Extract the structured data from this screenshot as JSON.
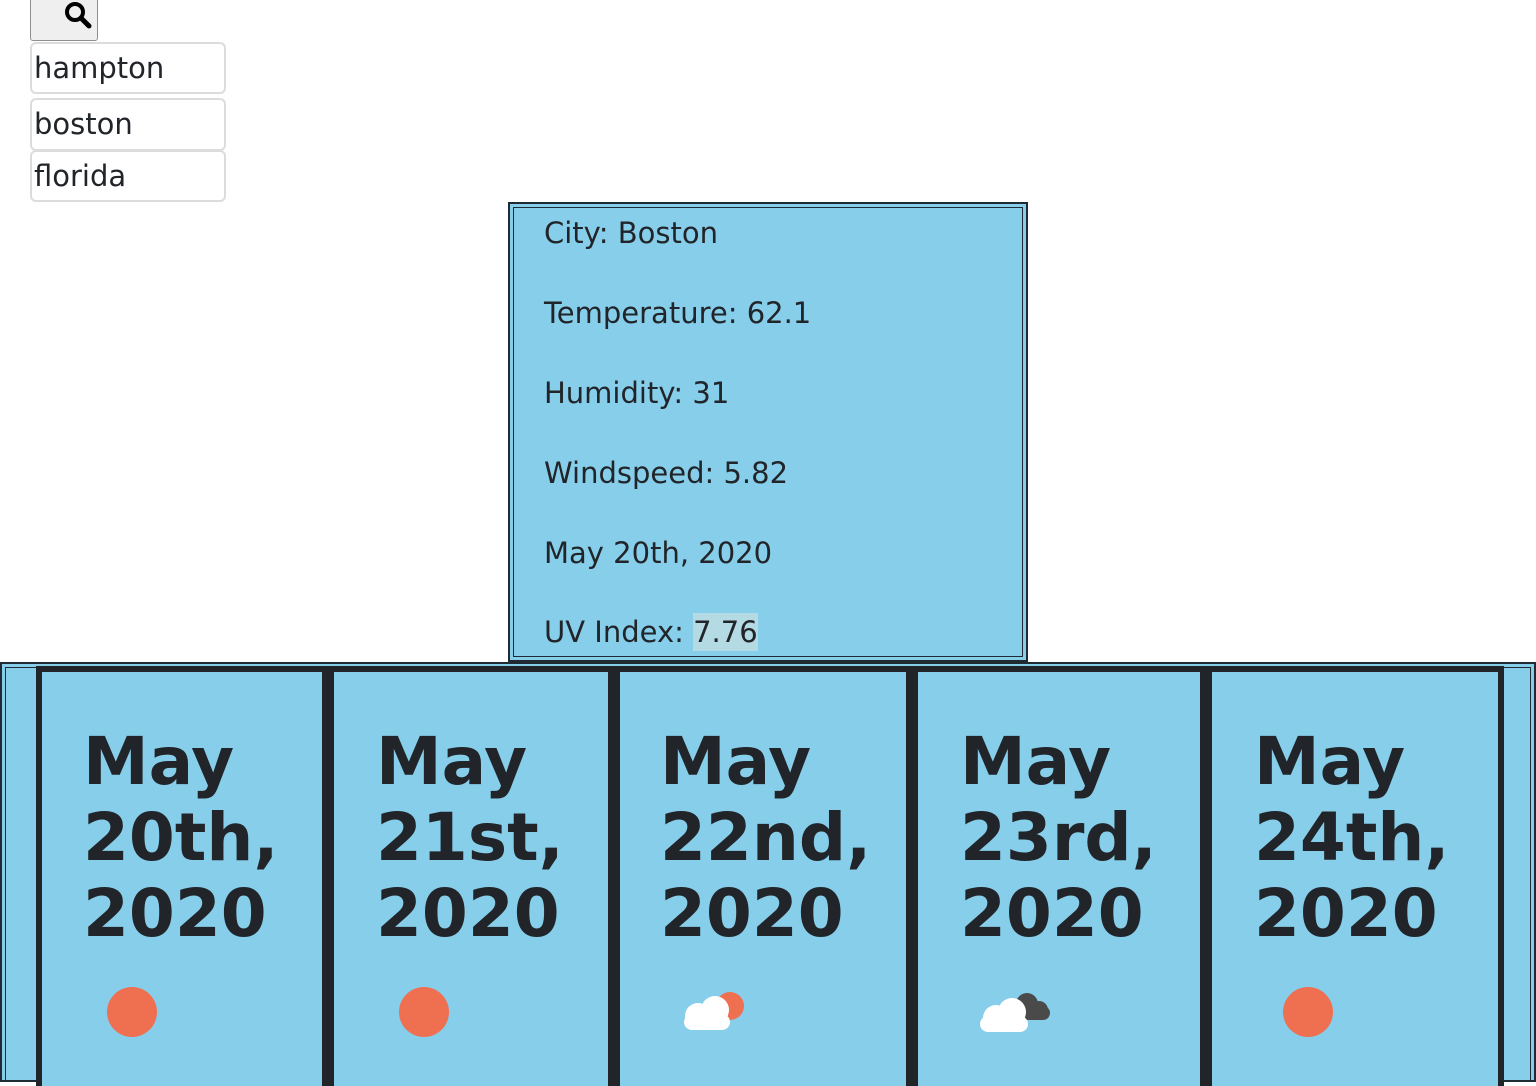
{
  "search": {
    "icon": "search-icon"
  },
  "history": [
    "hampton",
    "boston",
    "florida"
  ],
  "current": {
    "city_label": "City: Boston",
    "temperature_label": "Temperature: 62.1",
    "humidity_label": "Humidity: 31",
    "windspeed_label": "Windspeed: 5.82",
    "date": "May 20th, 2020",
    "uv_label": "UV Index: ",
    "uv_value": "7.76"
  },
  "forecast": [
    {
      "line1": "May",
      "line2": "20th,",
      "line3": "2020",
      "icon": "sun-icon"
    },
    {
      "line1": "May",
      "line2": "21st,",
      "line3": "2020",
      "icon": "sun-icon"
    },
    {
      "line1": "May",
      "line2": "22nd,",
      "line3": "2020",
      "icon": "partly-cloudy-icon"
    },
    {
      "line1": "May",
      "line2": "23rd,",
      "line3": "2020",
      "icon": "cloudy-icon"
    },
    {
      "line1": "May",
      "line2": "24th,",
      "line3": "2020",
      "icon": "sun-icon"
    }
  ],
  "colors": {
    "panel": "#87ceeb",
    "border": "#212529",
    "sun": "#ef6f51",
    "cloud_light": "#ffffff",
    "cloud_dark": "#4a4a4a"
  }
}
